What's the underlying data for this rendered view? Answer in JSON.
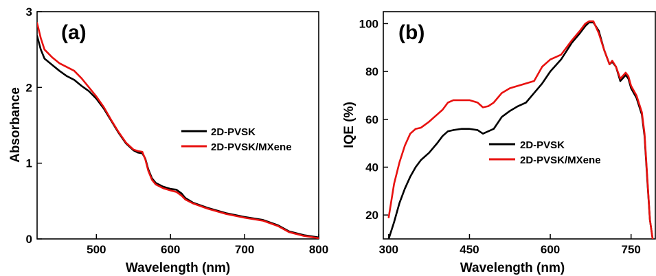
{
  "chart_data": [
    {
      "type": "line",
      "panel_label": "(a)",
      "xlabel": "Wavelength (nm)",
      "ylabel": "Absorbance",
      "xlim": [
        420,
        800
      ],
      "ylim": [
        0,
        3
      ],
      "xticks": [
        500,
        600,
        700,
        800
      ],
      "yticks": [
        0,
        1,
        2,
        3
      ],
      "xtick_labels": [
        "500",
        "600",
        "700",
        "800"
      ],
      "ytick_labels": [
        "0",
        "1",
        "2",
        "3"
      ],
      "legend_position": "center-right",
      "series": [
        {
          "name": "2D-PVSK",
          "color": "#000000",
          "x": [
            420,
            425,
            430,
            440,
            450,
            460,
            470,
            480,
            490,
            500,
            510,
            520,
            530,
            540,
            550,
            556,
            562,
            566,
            570,
            575,
            580,
            590,
            600,
            608,
            615,
            620,
            630,
            650,
            675,
            700,
            725,
            745,
            760,
            780,
            800
          ],
          "y": [
            2.68,
            2.5,
            2.38,
            2.3,
            2.22,
            2.15,
            2.1,
            2.02,
            1.95,
            1.85,
            1.72,
            1.56,
            1.4,
            1.26,
            1.17,
            1.14,
            1.13,
            1.06,
            0.92,
            0.8,
            0.74,
            0.69,
            0.66,
            0.65,
            0.6,
            0.54,
            0.48,
            0.41,
            0.34,
            0.29,
            0.25,
            0.18,
            0.1,
            0.05,
            0.02
          ]
        },
        {
          "name": "2D-PVSK/MXene",
          "color": "#e8110f",
          "x": [
            420,
            425,
            430,
            440,
            450,
            460,
            470,
            480,
            490,
            500,
            510,
            520,
            530,
            540,
            550,
            556,
            562,
            566,
            570,
            575,
            580,
            590,
            600,
            608,
            615,
            620,
            630,
            650,
            675,
            700,
            725,
            745,
            760,
            780,
            800
          ],
          "y": [
            2.85,
            2.65,
            2.5,
            2.4,
            2.32,
            2.27,
            2.22,
            2.12,
            2.0,
            1.88,
            1.74,
            1.57,
            1.41,
            1.27,
            1.18,
            1.16,
            1.15,
            1.05,
            0.9,
            0.78,
            0.72,
            0.67,
            0.64,
            0.62,
            0.57,
            0.52,
            0.47,
            0.4,
            0.33,
            0.28,
            0.24,
            0.17,
            0.09,
            0.04,
            0.01
          ]
        }
      ]
    },
    {
      "type": "line",
      "panel_label": "(b)",
      "xlabel": "Wavelength (nm)",
      "ylabel": "IQE (%)",
      "xlim": [
        290,
        795
      ],
      "ylim": [
        10,
        105
      ],
      "xticks": [
        300,
        450,
        600,
        750
      ],
      "yticks": [
        20,
        40,
        60,
        80,
        100
      ],
      "xtick_labels": [
        "300",
        "450",
        "600",
        "750"
      ],
      "ytick_labels": [
        "20",
        "40",
        "60",
        "80",
        "100"
      ],
      "legend_position": "center",
      "series": [
        {
          "name": "2D-PVSK",
          "color": "#000000",
          "x": [
            300,
            310,
            320,
            330,
            340,
            350,
            360,
            375,
            390,
            400,
            410,
            420,
            435,
            450,
            465,
            475,
            485,
            495,
            510,
            525,
            540,
            555,
            570,
            585,
            600,
            620,
            640,
            655,
            665,
            672,
            680,
            690,
            700,
            710,
            715,
            722,
            730,
            740,
            745,
            750,
            760,
            770,
            775,
            780,
            785,
            790
          ],
          "y": [
            10,
            17,
            25,
            31,
            36,
            40,
            43,
            46,
            50,
            53,
            55,
            55.5,
            56,
            56,
            55.5,
            54,
            55,
            56,
            61,
            63.5,
            65.5,
            67,
            71,
            75,
            80,
            85,
            92,
            96,
            99,
            100.5,
            100.5,
            97,
            89,
            83,
            84,
            82,
            76,
            78.5,
            77,
            73,
            69,
            62,
            53,
            35,
            18,
            10
          ]
        },
        {
          "name": "2D-PVSK/MXene",
          "color": "#e8110f",
          "x": [
            300,
            310,
            320,
            330,
            340,
            350,
            360,
            375,
            390,
            400,
            410,
            420,
            435,
            450,
            465,
            475,
            485,
            495,
            510,
            525,
            540,
            555,
            570,
            585,
            600,
            620,
            640,
            655,
            665,
            672,
            680,
            690,
            700,
            710,
            715,
            722,
            730,
            740,
            745,
            750,
            760,
            770,
            775,
            780,
            785,
            790
          ],
          "y": [
            19,
            33,
            42,
            49,
            54,
            56,
            56.5,
            59,
            62,
            64,
            67,
            68,
            68,
            68,
            67,
            65,
            65.5,
            67,
            71,
            73,
            74,
            75,
            76,
            82,
            85,
            87,
            93,
            97,
            100,
            101,
            101,
            96,
            89,
            83,
            84.5,
            82,
            77,
            79.5,
            78,
            74,
            70,
            63,
            54,
            36,
            18,
            10
          ]
        }
      ]
    }
  ]
}
